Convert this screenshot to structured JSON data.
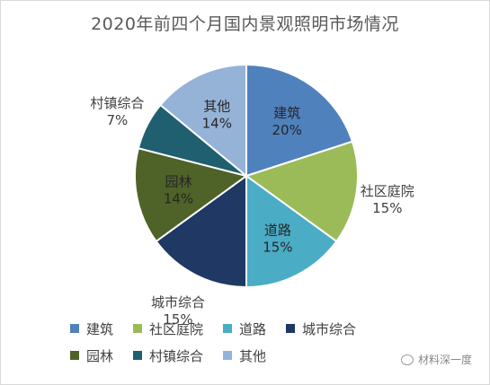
{
  "chart_data": {
    "type": "pie",
    "title": "2020年前四个月国内景观照明市场情况",
    "categories": [
      "建筑",
      "社区庭院",
      "道路",
      "城市综合",
      "园林",
      "村镇综合",
      "其他"
    ],
    "values": [
      20,
      15,
      15,
      15,
      14,
      7,
      14
    ],
    "value_labels": [
      "20%",
      "15%",
      "15%",
      "15%",
      "14%",
      "7%",
      "14%"
    ],
    "colors": [
      "#4f81bd",
      "#9bbb59",
      "#4bacc6",
      "#1f3864",
      "#4f6228",
      "#1f5f6f",
      "#95b3d7"
    ],
    "legend_position": "bottom"
  },
  "watermark": {
    "text": "材料深一度",
    "icon": "wechat-icon"
  }
}
